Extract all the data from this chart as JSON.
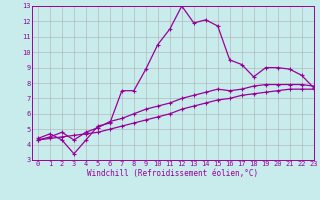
{
  "xlabel": "Windchill (Refroidissement éolien,°C)",
  "ylabel": "",
  "background_color": "#c8ecec",
  "line_color": "#990099",
  "grid_color": "#b0b0b0",
  "xlim": [
    -0.5,
    23
  ],
  "ylim": [
    3,
    13
  ],
  "xticks": [
    0,
    1,
    2,
    3,
    4,
    5,
    6,
    7,
    8,
    9,
    10,
    11,
    12,
    13,
    14,
    15,
    16,
    17,
    18,
    19,
    20,
    21,
    22,
    23
  ],
  "yticks": [
    3,
    4,
    5,
    6,
    7,
    8,
    9,
    10,
    11,
    12,
    13
  ],
  "line1_x": [
    0,
    1,
    2,
    3,
    4,
    5,
    6,
    7,
    8,
    9,
    10,
    11,
    12,
    13,
    14,
    15,
    16,
    17,
    18,
    19,
    20,
    21,
    22,
    23
  ],
  "line1_y": [
    4.4,
    4.7,
    4.3,
    3.4,
    4.3,
    5.2,
    5.4,
    7.5,
    7.5,
    8.9,
    10.5,
    11.5,
    13.0,
    11.9,
    12.1,
    11.7,
    9.5,
    9.2,
    8.4,
    9.0,
    9.0,
    8.9,
    8.5,
    7.7
  ],
  "line2_x": [
    0,
    1,
    2,
    3,
    4,
    5,
    6,
    7,
    8,
    9,
    10,
    11,
    12,
    13,
    14,
    15,
    16,
    17,
    18,
    19,
    20,
    21,
    22,
    23
  ],
  "line2_y": [
    4.3,
    4.5,
    4.8,
    4.3,
    4.8,
    5.1,
    5.5,
    5.7,
    6.0,
    6.3,
    6.5,
    6.7,
    7.0,
    7.2,
    7.4,
    7.6,
    7.5,
    7.6,
    7.8,
    7.9,
    7.9,
    7.9,
    7.9,
    7.8
  ],
  "line3_x": [
    0,
    1,
    2,
    3,
    4,
    5,
    6,
    7,
    8,
    9,
    10,
    11,
    12,
    13,
    14,
    15,
    16,
    17,
    18,
    19,
    20,
    21,
    22,
    23
  ],
  "line3_y": [
    4.3,
    4.4,
    4.5,
    4.6,
    4.7,
    4.8,
    5.0,
    5.2,
    5.4,
    5.6,
    5.8,
    6.0,
    6.3,
    6.5,
    6.7,
    6.9,
    7.0,
    7.2,
    7.3,
    7.4,
    7.5,
    7.6,
    7.6,
    7.6
  ],
  "tick_fontsize": 5.0,
  "xlabel_fontsize": 5.5,
  "marker_size": 3.5,
  "line_width": 0.9
}
